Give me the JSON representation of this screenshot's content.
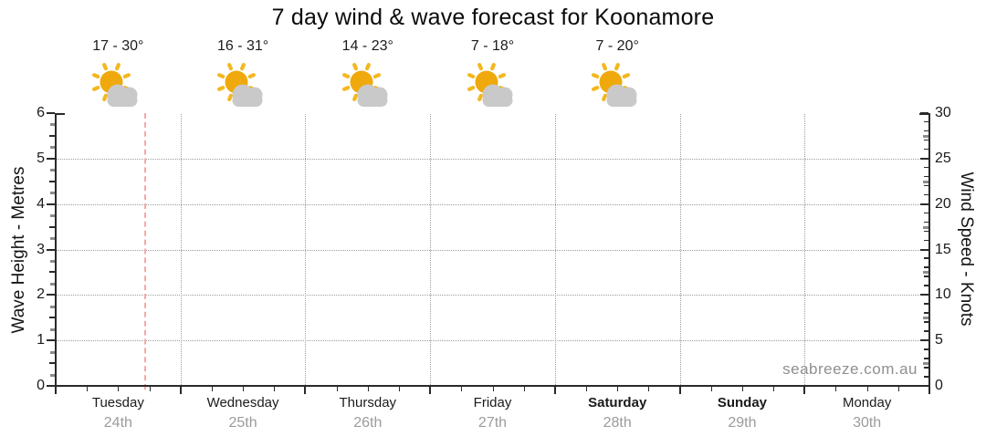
{
  "title": "7 day wind & wave forecast for Koonamore",
  "watermark": "seabreeze.com.au",
  "colors": {
    "text": "#1b1b1b",
    "date_text": "#9b9b9b",
    "grid": "#9d9d9d",
    "axis": "#2a2a2a",
    "minor_tick_gray": "#8c8c8c",
    "now_line": "#f7a9a3",
    "sun": "#f0a90d",
    "sun_rays": "#f3b81f",
    "cloud": "#c9c9c9",
    "watermark_text": "#8f8f8f"
  },
  "chart_data": {
    "type": "line",
    "title": "7 day wind & wave forecast for Koonamore",
    "subtitle": "",
    "left_axis": {
      "label": "Wave Height - Metres",
      "min": 0,
      "max": 6,
      "major_step": 1,
      "mid_step": 0.5,
      "minor_step": 0.25,
      "tick_labels": [
        "0",
        "1",
        "2",
        "3",
        "4",
        "5",
        "6"
      ]
    },
    "right_axis": {
      "label": "Wind Speed - Knots",
      "min": 0,
      "max": 30,
      "major_step": 5,
      "minor_step": 1,
      "tick_labels": [
        "0",
        "5",
        "10",
        "15",
        "20",
        "25",
        "30"
      ]
    },
    "x_axis": {
      "days_shown": 7,
      "minor_ticks_per_day": 4
    },
    "days": [
      {
        "name": "Tuesday",
        "date": "24th",
        "weekend": false,
        "temp_range": "17 - 30°",
        "icon": "sun-behind-cloud"
      },
      {
        "name": "Wednesday",
        "date": "25th",
        "weekend": false,
        "temp_range": "16 - 31°",
        "icon": "sun-behind-cloud"
      },
      {
        "name": "Thursday",
        "date": "26th",
        "weekend": false,
        "temp_range": "14 - 23°",
        "icon": "sun-behind-cloud"
      },
      {
        "name": "Friday",
        "date": "27th",
        "weekend": false,
        "temp_range": "7 - 18°",
        "icon": "sun-behind-cloud"
      },
      {
        "name": "Saturday",
        "date": "28th",
        "weekend": true,
        "temp_range": "7 - 20°",
        "icon": "sun-behind-cloud"
      },
      {
        "name": "Sunday",
        "date": "29th",
        "weekend": true,
        "temp_range": null,
        "icon": null
      },
      {
        "name": "Monday",
        "date": "30th",
        "weekend": false,
        "temp_range": null,
        "icon": null
      }
    ],
    "series": [],
    "now_marker": {
      "day_index": 0,
      "day_fraction": 0.72
    },
    "gridlines": {
      "horizontal_at_wave": [
        1,
        2,
        3,
        4,
        5
      ],
      "vertical_at_day_boundaries": true,
      "style": "dotted"
    },
    "legend": "none"
  }
}
